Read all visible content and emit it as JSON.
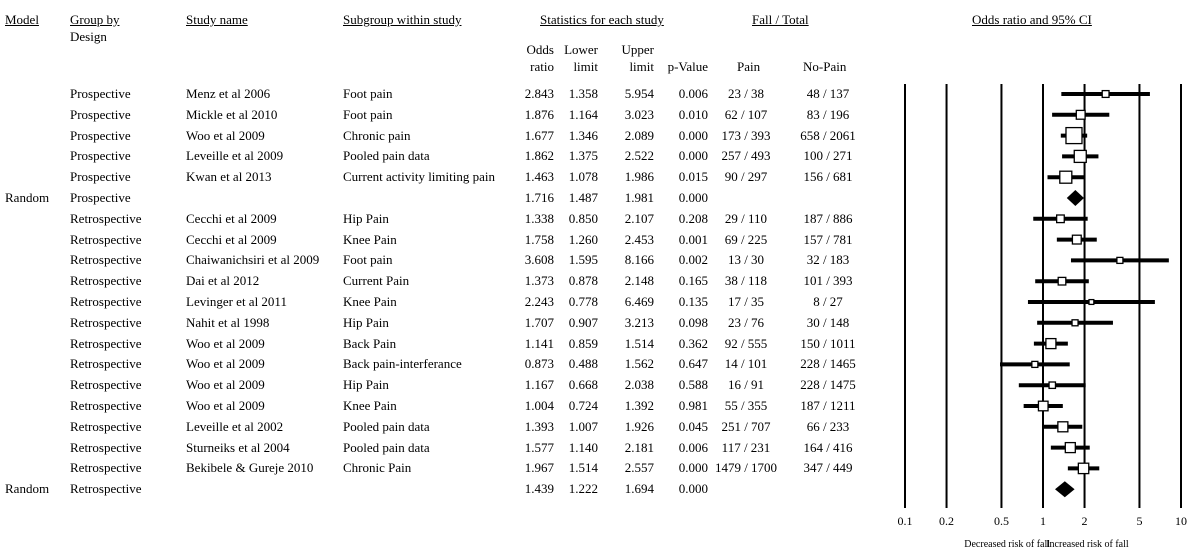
{
  "headers": {
    "model": "Model",
    "group_by": "Group by",
    "design": "Design",
    "study_name": "Study name",
    "subgroup": "Subgroup within study",
    "stats": "Statistics for each study",
    "fall_total": "Fall / Total",
    "or_ci": "Odds ratio and 95% CI",
    "odds": "Odds",
    "ratio": "ratio",
    "lower": "Lower",
    "upper": "Upper",
    "limit_l": "limit",
    "limit_u": "limit",
    "pvalue": "p-Value",
    "pain": "Pain",
    "nopain": "No-Pain"
  },
  "chart_data": {
    "type": "forest",
    "x_scale": "log",
    "xlim": [
      0.1,
      10
    ],
    "x_ticks": [
      "0.1",
      "0.2",
      "0.5",
      "1",
      "2",
      "5",
      "10"
    ],
    "x_tick_values": [
      0.1,
      0.2,
      0.5,
      1,
      2,
      5,
      10
    ],
    "xlabel_left": "Decreased risk of fall",
    "xlabel_right": "Increased risk of fall",
    "rows": [
      {
        "model": "",
        "group": "Prospective",
        "study": "Menz et al 2006",
        "subgroup": "Foot pain",
        "or": "2.843",
        "lower": "1.358",
        "upper": "5.954",
        "p": "0.006",
        "pain": "23 / 38",
        "nopain": "48 / 137",
        "type": "study",
        "weight": 0.7
      },
      {
        "model": "",
        "group": "Prospective",
        "study": "Mickle et al 2010",
        "subgroup": "Foot pain",
        "or": "1.876",
        "lower": "1.164",
        "upper": "3.023",
        "p": "0.010",
        "pain": "62 / 107",
        "nopain": "83 / 196",
        "type": "study",
        "weight": 1.2
      },
      {
        "model": "",
        "group": "Prospective",
        "study": "Woo et al 2009",
        "subgroup": "Chronic pain",
        "or": "1.677",
        "lower": "1.346",
        "upper": "2.089",
        "p": "0.000",
        "pain": "173 / 393",
        "nopain": "658 / 2061",
        "type": "study",
        "weight": 3.0
      },
      {
        "model": "",
        "group": "Prospective",
        "study": "Leveille et al 2009",
        "subgroup": "Pooled pain data",
        "or": "1.862",
        "lower": "1.375",
        "upper": "2.522",
        "p": "0.000",
        "pain": "257 / 493",
        "nopain": "100 / 271",
        "type": "study",
        "weight": 2.0
      },
      {
        "model": "",
        "group": "Prospective",
        "study": "Kwan et al 2013",
        "subgroup": "Current activity limiting pain",
        "or": "1.463",
        "lower": "1.078",
        "upper": "1.986",
        "p": "0.015",
        "pain": "90 / 297",
        "nopain": "156 / 681",
        "type": "study",
        "weight": 2.0
      },
      {
        "model": "Random",
        "group": "Prospective",
        "study": "",
        "subgroup": "",
        "or": "1.716",
        "lower": "1.487",
        "upper": "1.981",
        "p": "0.000",
        "pain": "",
        "nopain": "",
        "type": "summary"
      },
      {
        "model": "",
        "group": "Retrospective",
        "study": "Cecchi et al 2009",
        "subgroup": "Hip Pain",
        "or": "1.338",
        "lower": "0.850",
        "upper": "2.107",
        "p": "0.208",
        "pain": "29 / 110",
        "nopain": "187 / 886",
        "type": "study",
        "weight": 0.9
      },
      {
        "model": "",
        "group": "Retrospective",
        "study": "Cecchi et al 2009",
        "subgroup": "Knee Pain",
        "or": "1.758",
        "lower": "1.260",
        "upper": "2.453",
        "p": "0.001",
        "pain": "69 / 225",
        "nopain": "157 / 781",
        "type": "study",
        "weight": 1.2
      },
      {
        "model": "",
        "group": "Retrospective",
        "study": "Chaiwanichsiri et al 2009",
        "subgroup": "Foot pain",
        "or": "3.608",
        "lower": "1.595",
        "upper": "8.166",
        "p": "0.002",
        "pain": "13 / 30",
        "nopain": "32 / 183",
        "type": "study",
        "weight": 0.5
      },
      {
        "model": "",
        "group": "Retrospective",
        "study": "Dai et al 2012",
        "subgroup": "Current Pain",
        "or": "1.373",
        "lower": "0.878",
        "upper": "2.148",
        "p": "0.165",
        "pain": "38 / 118",
        "nopain": "101 / 393",
        "type": "study",
        "weight": 0.9
      },
      {
        "model": "",
        "group": "Retrospective",
        "study": "Levinger et al 2011",
        "subgroup": "Knee Pain",
        "or": "2.243",
        "lower": "0.778",
        "upper": "6.469",
        "p": "0.135",
        "pain": "17 / 35",
        "nopain": "8 / 27",
        "type": "study",
        "weight": 0.2
      },
      {
        "model": "",
        "group": "Retrospective",
        "study": "Nahit et al 1998",
        "subgroup": "Hip Pain",
        "or": "1.707",
        "lower": "0.907",
        "upper": "3.213",
        "p": "0.098",
        "pain": "23 / 76",
        "nopain": "30 / 148",
        "type": "study",
        "weight": 0.5
      },
      {
        "model": "",
        "group": "Retrospective",
        "study": "Woo et al 2009",
        "subgroup": "Back Pain",
        "or": "1.141",
        "lower": "0.859",
        "upper": "1.514",
        "p": "0.362",
        "pain": "92 / 555",
        "nopain": "150 / 1011",
        "type": "study",
        "weight": 1.5
      },
      {
        "model": "",
        "group": "Retrospective",
        "study": "Woo et al 2009",
        "subgroup": "Back pain-interferance",
        "or": "0.873",
        "lower": "0.488",
        "upper": "1.562",
        "p": "0.647",
        "pain": "14 / 101",
        "nopain": "228 / 1465",
        "type": "study",
        "weight": 0.5
      },
      {
        "model": "",
        "group": "Retrospective",
        "study": "Woo et al 2009",
        "subgroup": "Hip Pain",
        "or": "1.167",
        "lower": "0.668",
        "upper": "2.038",
        "p": "0.588",
        "pain": "16 / 91",
        "nopain": "228 / 1475",
        "type": "study",
        "weight": 0.6
      },
      {
        "model": "",
        "group": "Retrospective",
        "study": "Woo et al 2009",
        "subgroup": "Knee Pain",
        "or": "1.004",
        "lower": "0.724",
        "upper": "1.392",
        "p": "0.981",
        "pain": "55 / 355",
        "nopain": "187 / 1211",
        "type": "study",
        "weight": 1.4
      },
      {
        "model": "",
        "group": "Retrospective",
        "study": "Leveille et al 2002",
        "subgroup": "Pooled pain data",
        "or": "1.393",
        "lower": "1.007",
        "upper": "1.926",
        "p": "0.045",
        "pain": "251 / 707",
        "nopain": "66 / 233",
        "type": "study",
        "weight": 1.5
      },
      {
        "model": "",
        "group": "Retrospective",
        "study": "Sturneiks et al 2004",
        "subgroup": "Pooled pain data",
        "or": "1.577",
        "lower": "1.140",
        "upper": "2.181",
        "p": "0.006",
        "pain": "117 / 231",
        "nopain": "164 / 416",
        "type": "study",
        "weight": 1.5
      },
      {
        "model": "",
        "group": "Retrospective",
        "study": "Bekibele & Gureje 2010",
        "subgroup": "Chronic Pain",
        "or": "1.967",
        "lower": "1.514",
        "upper": "2.557",
        "p": "0.000",
        "pain": "1479 / 1700",
        "nopain": "347 / 449",
        "type": "study",
        "weight": 1.6
      },
      {
        "model": "Random",
        "group": "Retrospective",
        "study": "",
        "subgroup": "",
        "or": "1.439",
        "lower": "1.222",
        "upper": "1.694",
        "p": "0.000",
        "pain": "",
        "nopain": "",
        "type": "summary"
      }
    ]
  }
}
